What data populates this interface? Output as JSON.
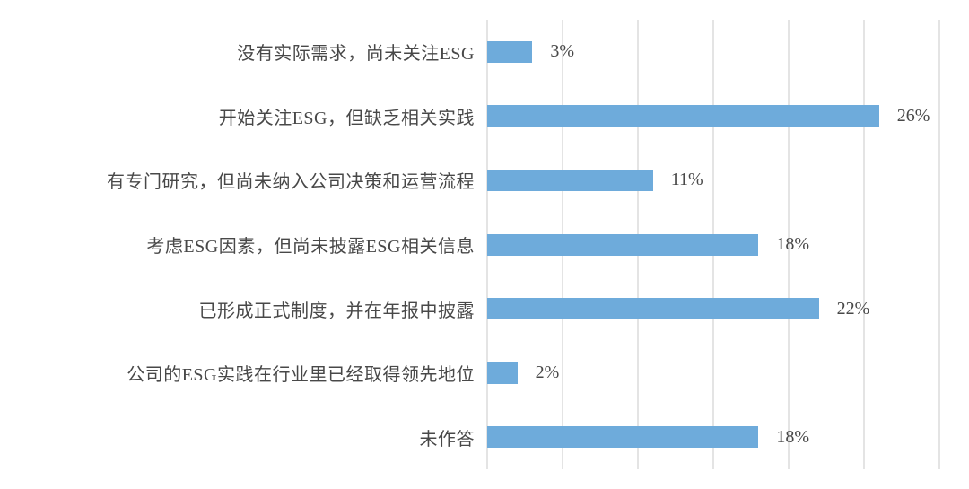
{
  "chart_data": {
    "type": "bar",
    "orientation": "horizontal",
    "title": "",
    "xlabel": "",
    "ylabel": "",
    "legend": "none",
    "grid": true,
    "xlim": [
      0,
      30
    ],
    "gridline_step": 5,
    "categories": [
      "没有实际需求，尚未关注ESG",
      "开始关注ESG，但缺乏相关实践",
      "有专门研究，但尚未纳入公司决策和运营流程",
      "考虑ESG因素，但尚未披露ESG相关信息",
      "已形成正式制度，并在年报中披露",
      "公司的ESG实践在行业里已经取得领先地位",
      "未作答"
    ],
    "values": [
      3,
      26,
      11,
      18,
      22,
      2,
      18
    ],
    "value_labels": [
      "3%",
      "26%",
      "11%",
      "18%",
      "22%",
      "2%",
      "18%"
    ],
    "colors": {
      "bar": "#6EABDB",
      "gridline": "#E4E4E4",
      "text": "#484848"
    }
  }
}
